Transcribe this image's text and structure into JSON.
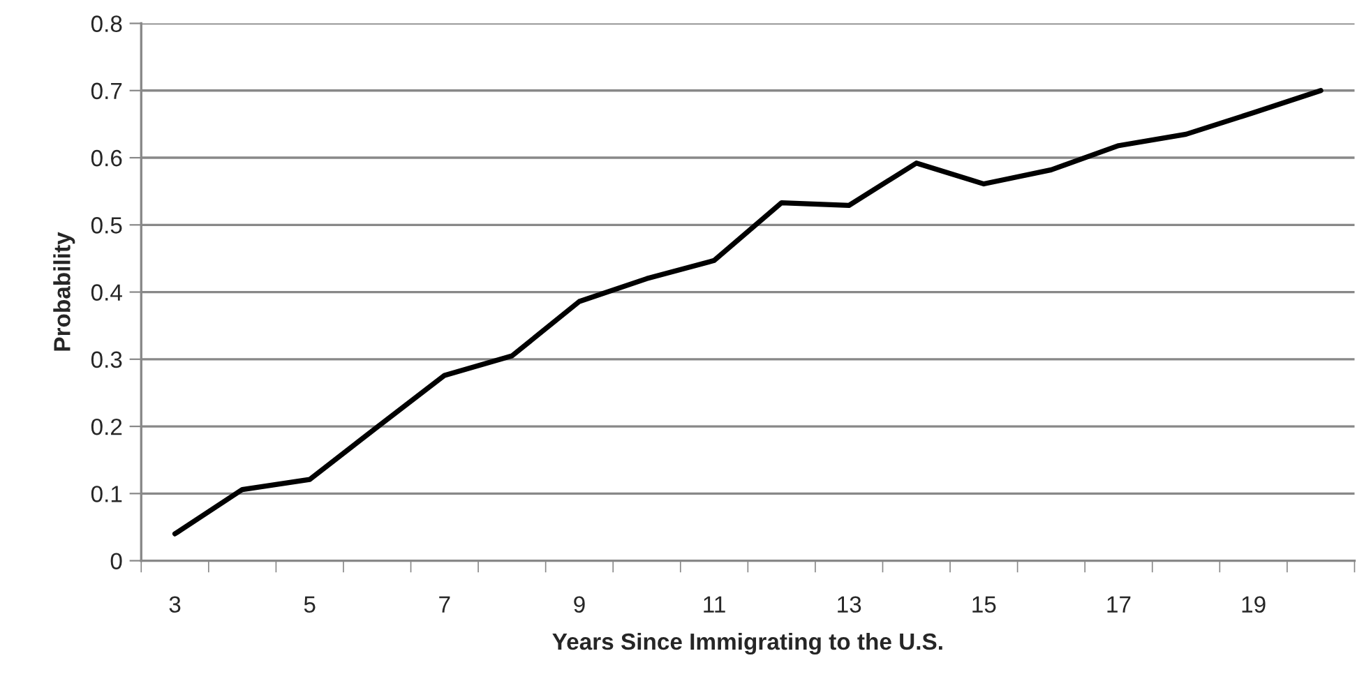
{
  "chart_data": {
    "type": "line",
    "xlabel": "Years Since Immigrating to the U.S.",
    "ylabel": "Probability",
    "categories": [
      "3",
      null,
      "5",
      null,
      "7",
      null,
      "9",
      null,
      "11",
      null,
      "13",
      null,
      "15",
      null,
      "17",
      null,
      "19",
      null
    ],
    "series": [
      {
        "color": "#000000",
        "values": [
          0.04,
          0.106,
          0.121,
          0.199,
          0.276,
          0.305,
          0.386,
          0.42,
          0.447,
          0.533,
          0.529,
          0.592,
          0.561,
          0.582,
          0.618,
          0.635,
          0.667,
          0.7
        ]
      }
    ],
    "ylim": [
      0,
      0.8
    ],
    "yticks": [
      0,
      0.1,
      0.2,
      0.3,
      0.4,
      0.5,
      0.6,
      0.7,
      0.8
    ],
    "grid": "y",
    "line_style": "solid"
  }
}
